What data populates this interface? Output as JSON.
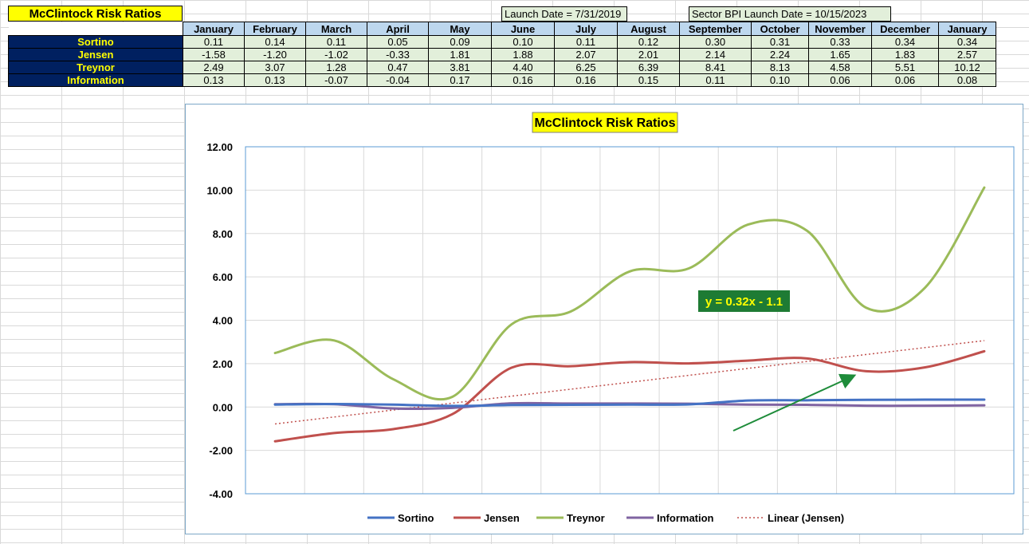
{
  "sheet_title": "McClintock Risk Ratios",
  "launch_date": "Launch Date = 7/31/2019",
  "sector_launch_date": "Sector BPI Launch Date = 10/15/2023",
  "table": {
    "months": [
      "January",
      "February",
      "March",
      "April",
      "May",
      "June",
      "July",
      "August",
      "September",
      "October",
      "November",
      "December",
      "January"
    ],
    "rows": [
      {
        "label": "Sortino",
        "values": [
          "0.11",
          "0.14",
          "0.11",
          "0.05",
          "0.09",
          "0.10",
          "0.11",
          "0.12",
          "0.30",
          "0.31",
          "0.33",
          "0.34",
          "0.34"
        ]
      },
      {
        "label": "Jensen",
        "values": [
          "-1.58",
          "-1.20",
          "-1.02",
          "-0.33",
          "1.81",
          "1.88",
          "2.07",
          "2.01",
          "2.14",
          "2.24",
          "1.65",
          "1.83",
          "2.57"
        ]
      },
      {
        "label": "Treynor",
        "values": [
          "2.49",
          "3.07",
          "1.28",
          "0.47",
          "3.81",
          "4.40",
          "6.25",
          "6.39",
          "8.41",
          "8.13",
          "4.58",
          "5.51",
          "10.12"
        ]
      },
      {
        "label": "Information",
        "values": [
          "0.13",
          "0.13",
          "-0.07",
          "-0.04",
          "0.17",
          "0.16",
          "0.16",
          "0.15",
          "0.11",
          "0.10",
          "0.06",
          "0.06",
          "0.08"
        ]
      }
    ]
  },
  "chart_data": {
    "type": "line",
    "title": "McClintock Risk Ratios",
    "xlabel": "",
    "ylabel": "",
    "categories": [
      "January",
      "February",
      "March",
      "April",
      "May",
      "June",
      "July",
      "August",
      "September",
      "October",
      "November",
      "December",
      "January"
    ],
    "ylim": [
      -4,
      12
    ],
    "yticks": [
      "12.00",
      "10.00",
      "8.00",
      "6.00",
      "4.00",
      "2.00",
      "0.00",
      "-2.00",
      "-4.00"
    ],
    "ytick_values": [
      12,
      10,
      8,
      6,
      4,
      2,
      0,
      -2,
      -4
    ],
    "grid": true,
    "smoothed": true,
    "legend_position": "bottom",
    "series": [
      {
        "name": "Sortino",
        "color": "#4472c4",
        "values": [
          0.11,
          0.14,
          0.11,
          0.05,
          0.09,
          0.1,
          0.11,
          0.12,
          0.3,
          0.31,
          0.33,
          0.34,
          0.34
        ]
      },
      {
        "name": "Jensen",
        "color": "#c0504d",
        "values": [
          -1.58,
          -1.2,
          -1.02,
          -0.33,
          1.81,
          1.88,
          2.07,
          2.01,
          2.14,
          2.24,
          1.65,
          1.83,
          2.57
        ]
      },
      {
        "name": "Treynor",
        "color": "#9bbb59",
        "values": [
          2.49,
          3.07,
          1.28,
          0.47,
          3.81,
          4.4,
          6.25,
          6.39,
          8.41,
          8.13,
          4.58,
          5.51,
          10.12
        ]
      },
      {
        "name": "Information",
        "color": "#8064a2",
        "values": [
          0.13,
          0.13,
          -0.07,
          -0.04,
          0.17,
          0.16,
          0.16,
          0.15,
          0.11,
          0.1,
          0.06,
          0.06,
          0.08
        ]
      }
    ],
    "trendline": {
      "name": "Linear (Jensen)",
      "color": "#c0504d",
      "slope": 0.32,
      "intercept": -1.1
    },
    "annotation": {
      "text": "y = 0.32x - 1.1",
      "color": "#ffff00",
      "background": "#1e7b34"
    },
    "arrow_color": "#1e8c3a"
  }
}
